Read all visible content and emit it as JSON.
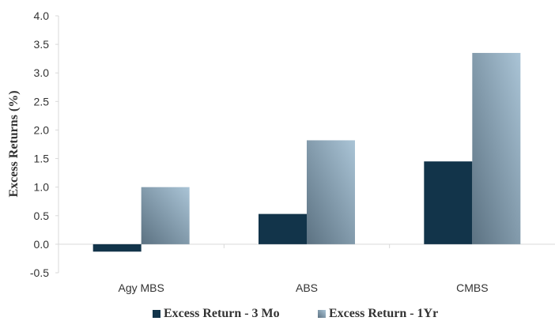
{
  "chart_data": {
    "type": "bar",
    "categories": [
      "Agy MBS",
      "ABS",
      "CMBS"
    ],
    "series": [
      {
        "name": "Excess Return - 3 Mo",
        "values": [
          -0.13,
          0.53,
          1.45
        ],
        "color": "#12344a"
      },
      {
        "name": "Excess Return - 1Yr",
        "values": [
          1.0,
          1.82,
          3.35
        ],
        "color": "#8aa3b5",
        "gradient": [
          "#5c7282",
          "#aac4d6"
        ]
      }
    ],
    "title": "",
    "xlabel": "",
    "ylabel": "Excess Returns (%)",
    "ylim": [
      -0.5,
      4.0
    ],
    "yticks": [
      "4.0",
      "3.5",
      "3.0",
      "2.5",
      "2.0",
      "1.5",
      "1.0",
      "0.5",
      "0.0",
      "-0.5"
    ],
    "grid": false,
    "legend_position": "bottom"
  }
}
